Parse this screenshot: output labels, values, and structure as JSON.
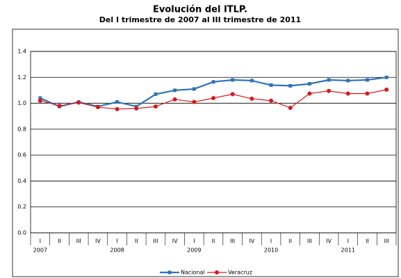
{
  "chart_data": {
    "type": "line",
    "title": "Evolución del ITLP.",
    "subtitle": "Del I trimestre de 2007 al III trimestre de 2011",
    "categories": [
      "I",
      "II",
      "III",
      "IV",
      "I",
      "II",
      "III",
      "IV",
      "I",
      "II",
      "III",
      "IV",
      "I",
      "II",
      "III",
      "IV",
      "I",
      "II",
      "III"
    ],
    "year_labels": [
      "2007",
      null,
      null,
      null,
      "2008",
      null,
      null,
      null,
      "2009",
      null,
      null,
      null,
      "2010",
      null,
      null,
      null,
      "2011",
      null,
      null
    ],
    "series": [
      {
        "name": "Nacional",
        "color": "#2e74b5",
        "marker": "square",
        "values": [
          1.04,
          0.975,
          1.01,
          0.975,
          1.01,
          0.975,
          1.07,
          1.1,
          1.11,
          1.165,
          1.18,
          1.175,
          1.14,
          1.135,
          1.15,
          1.18,
          1.175,
          1.18,
          1.2
        ]
      },
      {
        "name": "Veracruz",
        "color": "#d7191c",
        "marker": "circle",
        "values": [
          1.02,
          0.98,
          1.005,
          0.97,
          0.955,
          0.96,
          0.975,
          1.03,
          1.01,
          1.04,
          1.07,
          1.035,
          1.02,
          0.965,
          1.075,
          1.095,
          1.075,
          1.075,
          1.105
        ]
      }
    ],
    "ylim": [
      0,
      1.4
    ],
    "yticks": [
      {
        "value": 0,
        "label": "0.0"
      },
      0.2,
      0.4,
      0.6,
      0.8,
      {
        "value": 1,
        "label": "1.0"
      },
      1.2,
      1.4
    ],
    "grid": true,
    "legend": "bottom"
  }
}
